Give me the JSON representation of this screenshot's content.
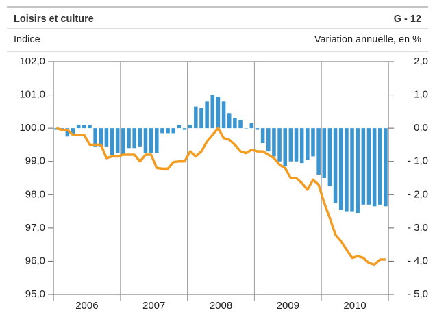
{
  "chart_data": {
    "type": "bar-line",
    "title": "Loisirs et culture",
    "code": "G - 12",
    "y_label": "Indice",
    "y2_label": "Variation annuelle, en %",
    "categories": [
      null,
      null,
      null,
      null,
      null,
      "2006",
      null,
      null,
      null,
      null,
      null,
      null,
      null,
      null,
      null,
      null,
      null,
      "2007",
      null,
      null,
      null,
      null,
      null,
      null,
      null,
      null,
      null,
      null,
      null,
      "2008",
      null,
      null,
      null,
      null,
      null,
      null,
      null,
      null,
      null,
      null,
      null,
      "2009",
      null,
      null,
      null,
      null,
      null,
      null,
      null,
      null,
      null,
      null,
      null,
      "2010",
      null,
      null,
      null,
      null,
      null,
      null
    ],
    "series": [
      {
        "type": "bar",
        "axis": "y2",
        "color": "#3a95d1",
        "values": [
          -0.05,
          -0.05,
          -0.25,
          -0.2,
          0.1,
          0.1,
          0.1,
          -0.55,
          -0.55,
          -0.55,
          -0.8,
          -0.75,
          -0.8,
          -0.6,
          -0.6,
          -0.55,
          -0.75,
          -0.75,
          -0.75,
          -0.15,
          -0.15,
          -0.15,
          0.1,
          -0.05,
          0.1,
          0.65,
          0.6,
          0.8,
          1.0,
          0.95,
          0.8,
          0.45,
          0.3,
          0.25,
          0.0,
          0.15,
          -0.05,
          -0.45,
          -0.7,
          -0.85,
          -1.0,
          -1.15,
          -1.0,
          -1.0,
          -1.05,
          -0.95,
          -0.85,
          -1.4,
          -1.5,
          -1.75,
          -2.25,
          -2.45,
          -2.5,
          -2.5,
          -2.55,
          -2.3,
          -2.3,
          -2.35,
          -2.3,
          -2.35
        ]
      },
      {
        "type": "line",
        "axis": "y",
        "color": "#f39c21",
        "values": [
          100.0,
          99.95,
          99.95,
          99.8,
          99.8,
          99.8,
          99.5,
          99.5,
          99.5,
          99.1,
          99.15,
          99.15,
          99.2,
          99.2,
          99.2,
          99.0,
          99.2,
          99.2,
          98.8,
          98.78,
          98.78,
          98.98,
          99.0,
          99.0,
          99.3,
          99.15,
          99.3,
          99.6,
          99.8,
          100.0,
          99.7,
          99.65,
          99.5,
          99.3,
          99.25,
          99.35,
          99.3,
          99.3,
          99.2,
          99.1,
          98.9,
          98.8,
          98.5,
          98.5,
          98.35,
          98.15,
          98.45,
          98.3,
          97.75,
          97.3,
          96.8,
          96.6,
          96.35,
          96.1,
          96.15,
          96.1,
          95.95,
          95.9,
          96.05,
          96.05
        ]
      }
    ],
    "ylim": [
      95,
      102
    ],
    "yticks": [
      {
        "value": 95,
        "label": "95,0"
      },
      {
        "value": 96,
        "label": "96,0"
      },
      {
        "value": 97,
        "label": "97,0"
      },
      {
        "value": 98,
        "label": "98,0"
      },
      {
        "value": 99,
        "label": "99,0"
      },
      {
        "value": 100,
        "label": "100,0"
      },
      {
        "value": 101,
        "label": "101,0"
      },
      {
        "value": 102,
        "label": "102,0"
      }
    ],
    "y2lim": [
      -5,
      2
    ],
    "y2ticks": [
      {
        "value": -5,
        "label": "- 5,0"
      },
      {
        "value": -4,
        "label": "- 4,0"
      },
      {
        "value": -3,
        "label": "- 3,0"
      },
      {
        "value": -2,
        "label": "- 2,0"
      },
      {
        "value": -1,
        "label": "- 1,0"
      },
      {
        "value": 0,
        "label": "0,0"
      },
      {
        "value": 1,
        "label": "1,0"
      },
      {
        "value": 2,
        "label": "2,0"
      }
    ]
  }
}
